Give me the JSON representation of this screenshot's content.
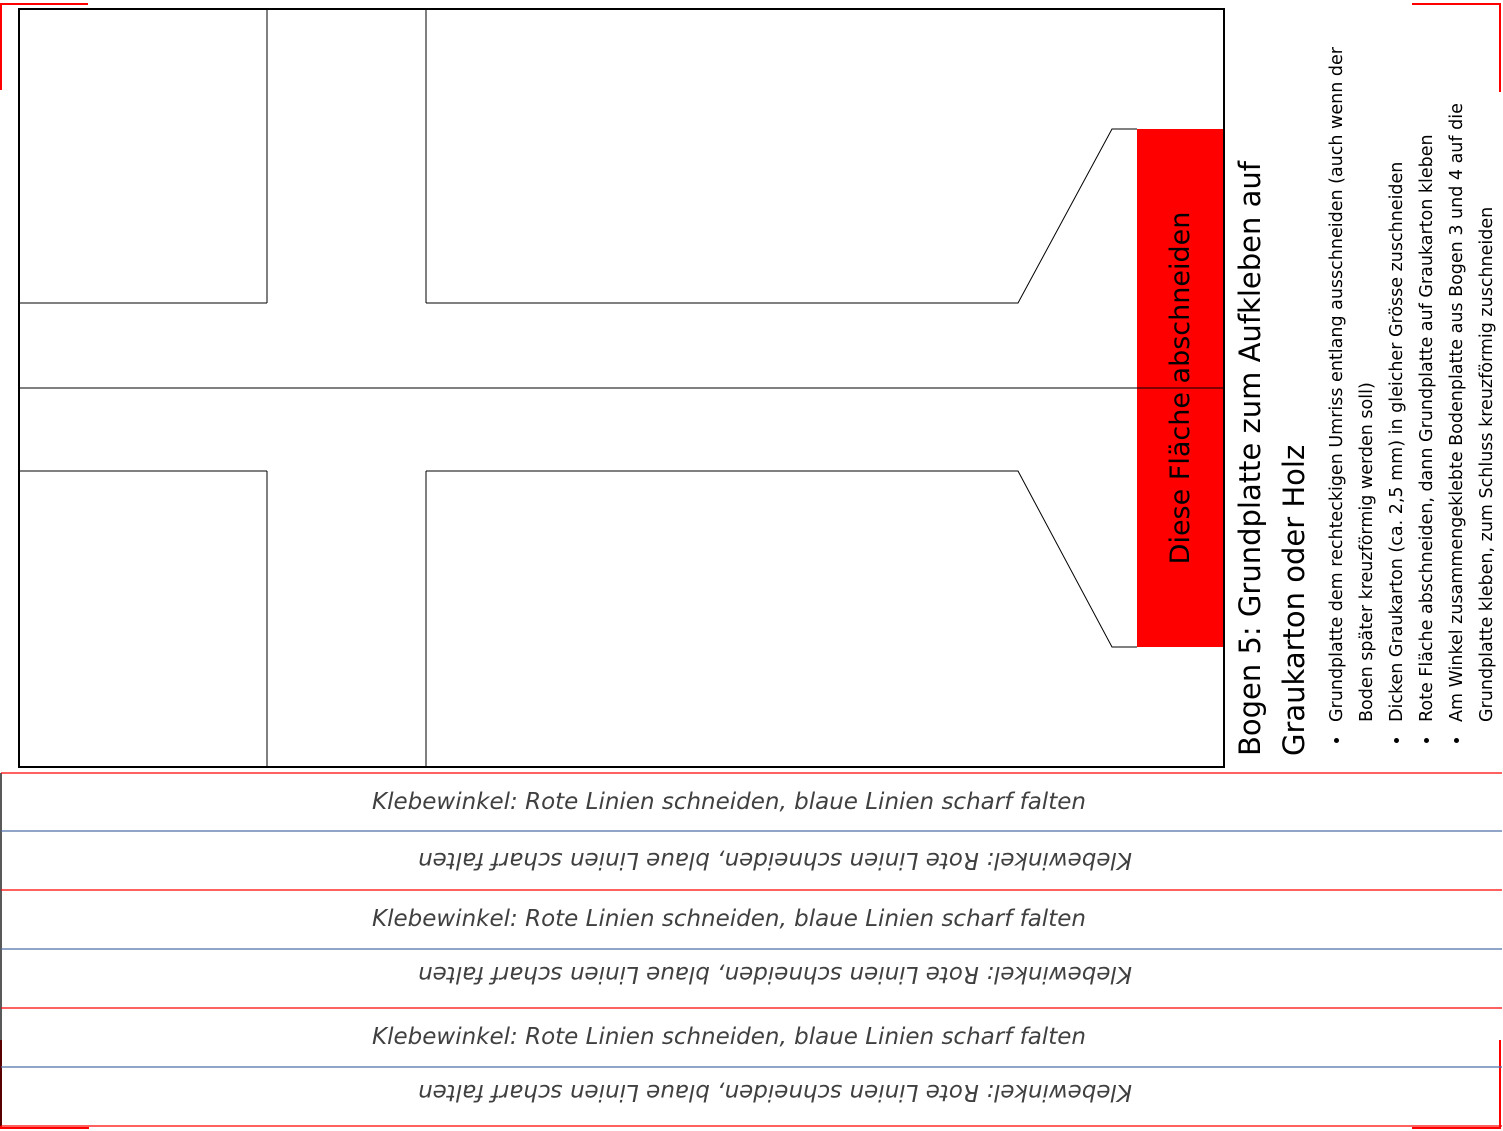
{
  "red_panel_label": "Diese Fläche abschneiden",
  "title": {
    "line1": "Bogen 5: Grundplatte zum Aufkleben auf",
    "line2": "Graukarton oder Holz"
  },
  "instructions": [
    "Grundplatte dem rechteckigen Umriss entlang ausschneiden (auch wenn der Boden später kreuzförmig werden soll)",
    "Dicken Graukarton (ca. 2,5 mm) in gleicher Grösse zuschneiden",
    "Rote Fläche abschneiden, dann Grundplatte auf Graukarton kleben",
    "Am Winkel zusammengeklebte Bodenplatte aus Bogen 3 und 4 auf die Grundplatte kleben, zum Schluss kreuzförmig zuschneiden"
  ],
  "strips": [
    "Klebewinkel: Rote Linien schneiden, blaue Linien scharf falten",
    "Klebewinkel: Rote Linien schneiden, blaue Linien scharf falten",
    "Klebewinkel: Rote Linien schneiden, blaue Linien scharf falten",
    "Klebewinkel: Rote Linien schneiden, blaue Linien scharf falten",
    "Klebewinkel: Rote Linien schneiden, blaue Linien scharf falten",
    "Klebewinkel: Rote Linien schneiden, blaue Linien scharf falten"
  ],
  "colors": {
    "cut": "#ff0000",
    "fold": "#4f6fa8",
    "panel": "#ff0000",
    "text": "#404040"
  }
}
